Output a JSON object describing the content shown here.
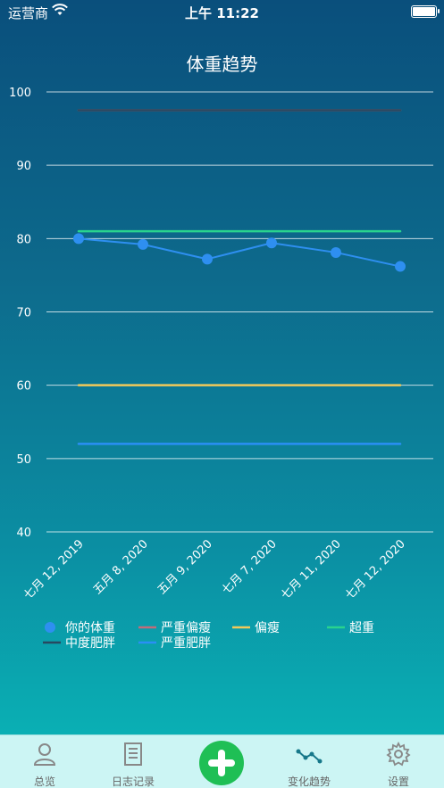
{
  "status_bar": {
    "carrier": "运营商",
    "time": "上午 11:22"
  },
  "page": {
    "title": "体重趋势"
  },
  "chart_data": {
    "type": "line",
    "title": "体重趋势",
    "ylim": [
      40,
      100
    ],
    "y_ticks": [
      100,
      90,
      80,
      70,
      60,
      50,
      40
    ],
    "categories": [
      "七月 12, 2019",
      "五月 8, 2020",
      "五月 9, 2020",
      "七月 7, 2020",
      "七月 11, 2020",
      "七月 12, 2020"
    ],
    "series": [
      {
        "name": "你的体重",
        "values": [
          80.0,
          79.2,
          77.2,
          79.4,
          78.1,
          76.2
        ],
        "color": "#2e8ff0",
        "markers": true
      },
      {
        "name": "严重偏瘦",
        "values": [
          97.5,
          97.5,
          97.5,
          97.5,
          97.5,
          97.5
        ],
        "color": "#c06d7a"
      },
      {
        "name": "偏瘦",
        "values": [
          60,
          60,
          60,
          60,
          60,
          60
        ],
        "color": "#f2c95a"
      },
      {
        "name": "超重",
        "values": [
          81,
          81,
          81,
          81,
          81,
          81
        ],
        "color": "#29d38e"
      },
      {
        "name": "中度肥胖",
        "values": [
          97.5,
          97.5,
          97.5,
          97.5,
          97.5,
          97.5
        ],
        "color": "#284860"
      },
      {
        "name": "严重肥胖",
        "values": [
          52,
          52,
          52,
          52,
          52,
          52
        ],
        "color": "#2a8ff5"
      }
    ],
    "legend_position": "bottom",
    "grid": true
  },
  "tabs": [
    {
      "label": "总览",
      "icon": "person-icon",
      "active": false
    },
    {
      "label": "日志记录",
      "icon": "document-icon",
      "active": false
    },
    {
      "label": "",
      "icon": "add-icon",
      "active": false
    },
    {
      "label": "变化趋势",
      "icon": "trend-icon",
      "active": true
    },
    {
      "label": "设置",
      "icon": "gear-icon",
      "active": false
    }
  ]
}
